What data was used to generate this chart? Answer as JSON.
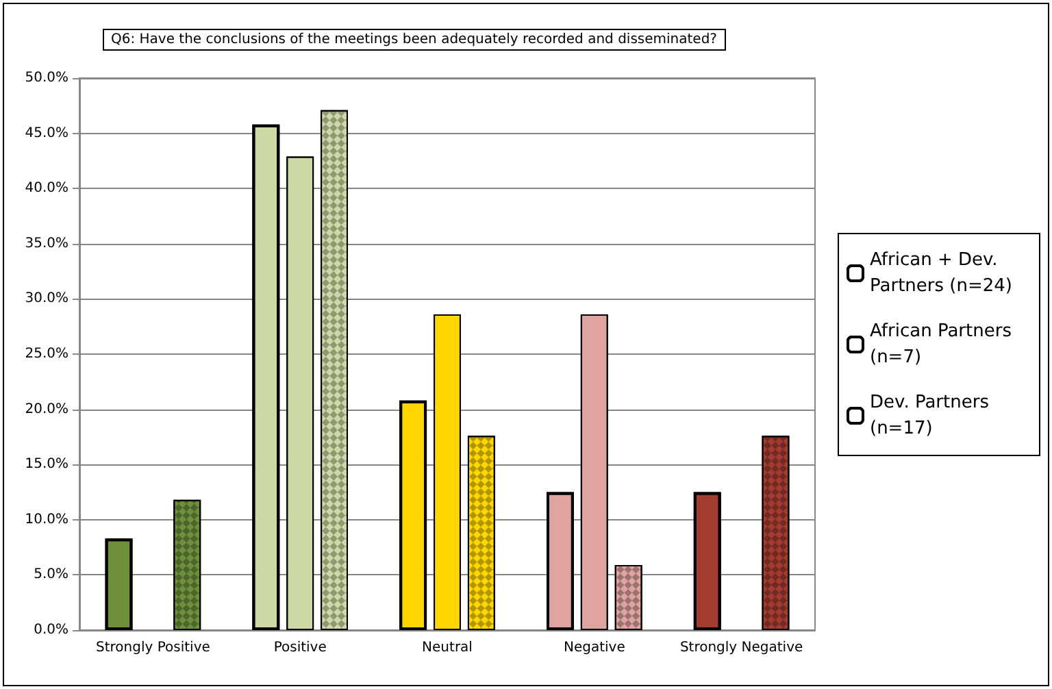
{
  "chart_data": {
    "type": "bar",
    "title": "Q6: Have the conclusions of the meetings been adequately recorded and disseminated?",
    "categories": [
      "Strongly Positive",
      "Positive",
      "Neutral",
      "Negative",
      "Strongly Negative"
    ],
    "series": [
      {
        "name": "African + Dev. Partners (n=24)",
        "colors": [
          "#6e8f3c",
          "#cdd9a5",
          "#ffd700",
          "#e0a4a0",
          "#a23b30"
        ],
        "values": [
          8.3,
          45.8,
          20.8,
          12.5,
          12.5
        ]
      },
      {
        "name": "African Partners (n=7)",
        "colors": [
          "#6e8f3c",
          "#cdd9a5",
          "#ffd700",
          "#e0a4a0",
          "#a23b30"
        ],
        "values": [
          0,
          42.9,
          28.6,
          28.6,
          0
        ]
      },
      {
        "name": "Dev. Partners (n=17)",
        "colors": [
          "#6e8f3c",
          "#cdd9a5",
          "#ffd700",
          "#e0a4a0",
          "#a23b30"
        ],
        "values": [
          11.8,
          47.1,
          17.6,
          5.9,
          17.6
        ]
      }
    ],
    "ylim": [
      0,
      50
    ],
    "yticks": [
      {
        "value": 0,
        "label": "0.0%"
      },
      {
        "value": 5,
        "label": "5.0%"
      },
      {
        "value": 10,
        "label": "10.0%"
      },
      {
        "value": 15,
        "label": "15.0%"
      },
      {
        "value": 20,
        "label": "20.0%"
      },
      {
        "value": 25,
        "label": "25.0%"
      },
      {
        "value": 30,
        "label": "30.0%"
      },
      {
        "value": 35,
        "label": "35.0%"
      },
      {
        "value": 40,
        "label": "40.0%"
      },
      {
        "value": 45,
        "label": "45.0%"
      },
      {
        "value": 50,
        "label": "50.0%"
      }
    ],
    "grid": "y",
    "legend": "right"
  }
}
